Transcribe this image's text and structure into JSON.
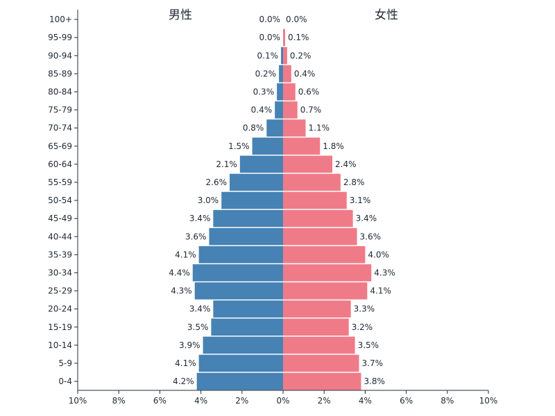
{
  "chart_data": {
    "type": "bar",
    "orientation": "horizontal-butterfly",
    "titles": {
      "left": "男性",
      "right": "女性"
    },
    "categories": [
      "0-4",
      "5-9",
      "10-14",
      "15-19",
      "20-24",
      "25-29",
      "30-34",
      "35-39",
      "40-44",
      "45-49",
      "50-54",
      "55-59",
      "60-64",
      "65-69",
      "70-74",
      "75-79",
      "80-84",
      "85-89",
      "90-94",
      "95-99",
      "100+"
    ],
    "series": [
      {
        "name": "男性",
        "color": "#4682b4",
        "values": [
          4.2,
          4.1,
          3.9,
          3.5,
          3.4,
          4.3,
          4.4,
          4.1,
          3.6,
          3.4,
          3.0,
          2.6,
          2.1,
          1.5,
          0.8,
          0.4,
          0.3,
          0.2,
          0.1,
          0.0,
          0.0
        ],
        "labels": [
          "4.2%",
          "4.1%",
          "3.9%",
          "3.5%",
          "3.4%",
          "4.3%",
          "4.4%",
          "4.1%",
          "3.6%",
          "3.4%",
          "3.0%",
          "2.6%",
          "2.1%",
          "1.5%",
          "0.8%",
          "0.4%",
          "0.3%",
          "0.2%",
          "0.1%",
          "0.0%",
          "0.0%"
        ]
      },
      {
        "name": "女性",
        "color": "#f07b88",
        "values": [
          3.8,
          3.7,
          3.5,
          3.2,
          3.3,
          4.1,
          4.3,
          4.0,
          3.6,
          3.4,
          3.1,
          2.8,
          2.4,
          1.8,
          1.1,
          0.7,
          0.6,
          0.4,
          0.2,
          0.1,
          0.0
        ],
        "labels": [
          "3.8%",
          "3.7%",
          "3.5%",
          "3.2%",
          "3.3%",
          "4.1%",
          "4.3%",
          "4.0%",
          "3.6%",
          "3.4%",
          "3.1%",
          "2.8%",
          "2.4%",
          "1.8%",
          "1.1%",
          "0.7%",
          "0.6%",
          "0.4%",
          "0.2%",
          "0.1%",
          "0.0%"
        ]
      }
    ],
    "xaxis": {
      "range": [
        -10,
        10
      ],
      "ticks": [
        -10,
        -8,
        -6,
        -4,
        -2,
        0,
        2,
        4,
        6,
        8,
        10
      ],
      "tick_labels": [
        "10%",
        "8%",
        "6%",
        "4%",
        "2%",
        "0%",
        "2%",
        "4%",
        "6%",
        "8%",
        "10%"
      ]
    },
    "grid": false,
    "legend": "none"
  }
}
